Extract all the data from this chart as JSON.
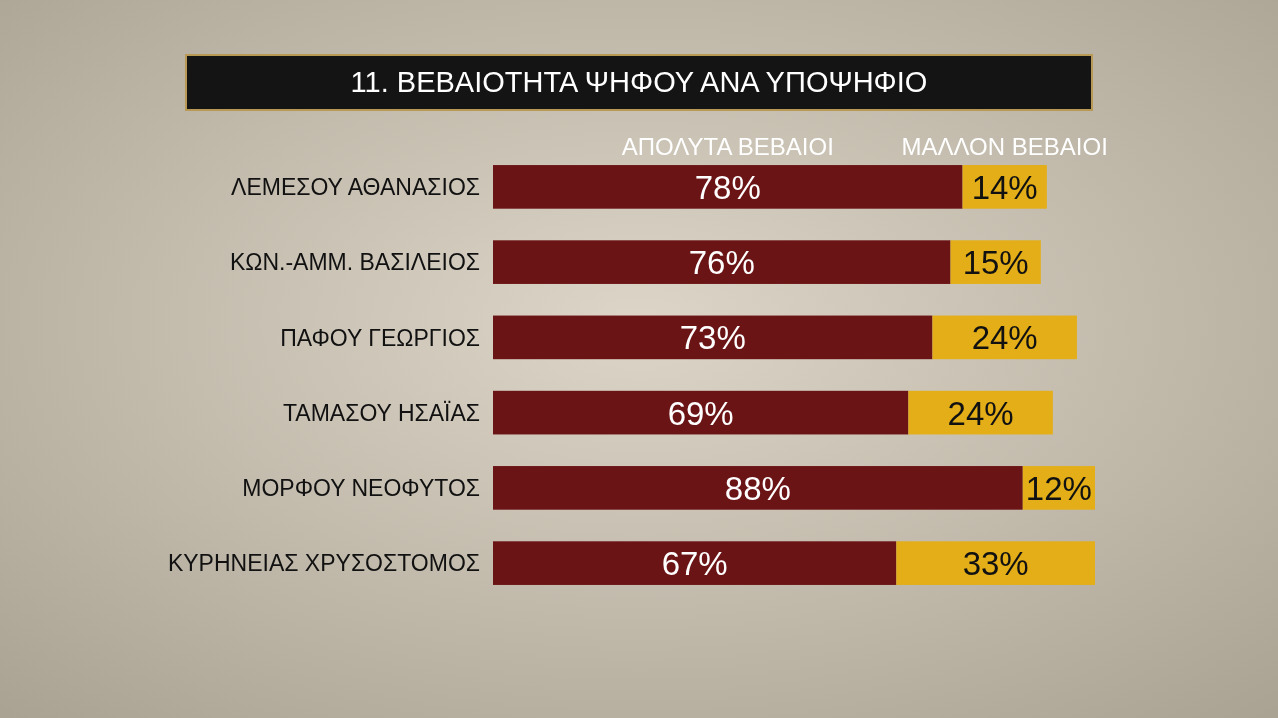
{
  "chart_data": {
    "type": "bar",
    "orientation": "horizontal",
    "stacked": true,
    "title": "11. ΒΕΒΑΙΟΤΗΤΑ ΨΗΦΟΥ ΑΝΑ ΥΠΟΨΗΦΙΟ",
    "categories": [
      "ΛΕΜΕΣΟΥ ΑΘΑΝΑΣΙΟΣ",
      "ΚΩΝ.-ΑΜΜ. ΒΑΣΙΛΕΙΟΣ",
      "ΠΑΦΟΥ ΓΕΩΡΓΙΟΣ",
      "ΤΑΜΑΣΟΥ ΗΣΑΪΑΣ",
      "ΜΟΡΦΟΥ ΝΕΟΦΥΤΟΣ",
      "ΚΥΡΗΝΕΙΑΣ ΧΡΥΣΟΣΤΟΜΟΣ"
    ],
    "series": [
      {
        "name": "ΑΠΟΛΥΤΑ ΒΕΒΑΙΟΙ",
        "color": "#6b1416",
        "values": [
          78,
          76,
          73,
          69,
          88,
          67
        ],
        "value_labels": [
          "78%",
          "76%",
          "73%",
          "69%",
          "88%",
          "67%"
        ]
      },
      {
        "name": "ΜΑΛΛΟΝ ΒΕΒΑΙΟΙ",
        "color": "#e3ae18",
        "values": [
          14,
          15,
          24,
          24,
          12,
          33
        ],
        "value_labels": [
          "14%",
          "15%",
          "24%",
          "24%",
          "12%",
          "33%"
        ]
      }
    ],
    "legend": "top"
  }
}
